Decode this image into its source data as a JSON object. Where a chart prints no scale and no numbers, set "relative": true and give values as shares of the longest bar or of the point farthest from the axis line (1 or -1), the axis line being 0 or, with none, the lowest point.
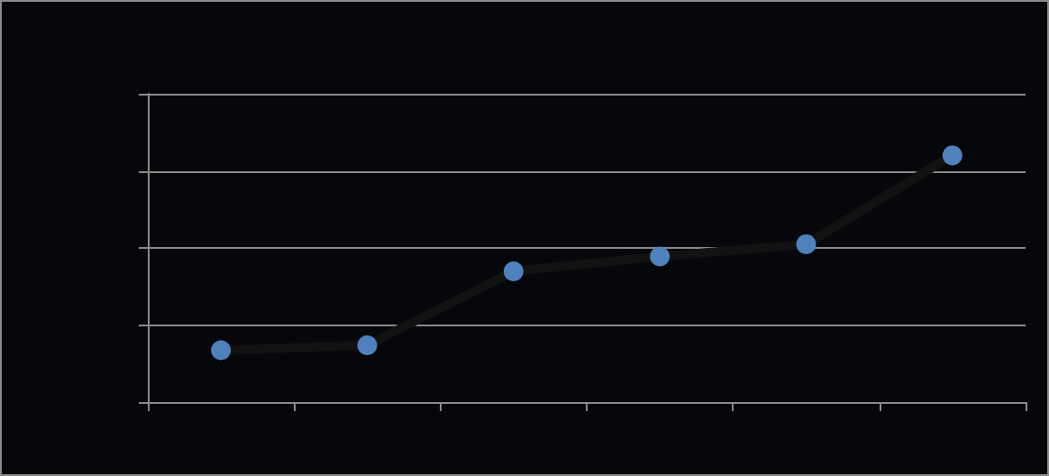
{
  "chart_data": {
    "type": "line",
    "relative": true,
    "categories": [
      null,
      null,
      null,
      null,
      null,
      null
    ],
    "series": [
      {
        "color": "#121212",
        "colors": [
          "#4f81bd",
          "#4f81bd",
          "#4f81bd",
          "#4f81bd",
          "#4f81bd",
          "#4f81bd"
        ],
        "values": [
          0.21,
          0.23,
          0.53,
          0.59,
          0.64,
          1
        ]
      }
    ],
    "grid": "y",
    "marker": "circle",
    "line_style": "solid"
  }
}
